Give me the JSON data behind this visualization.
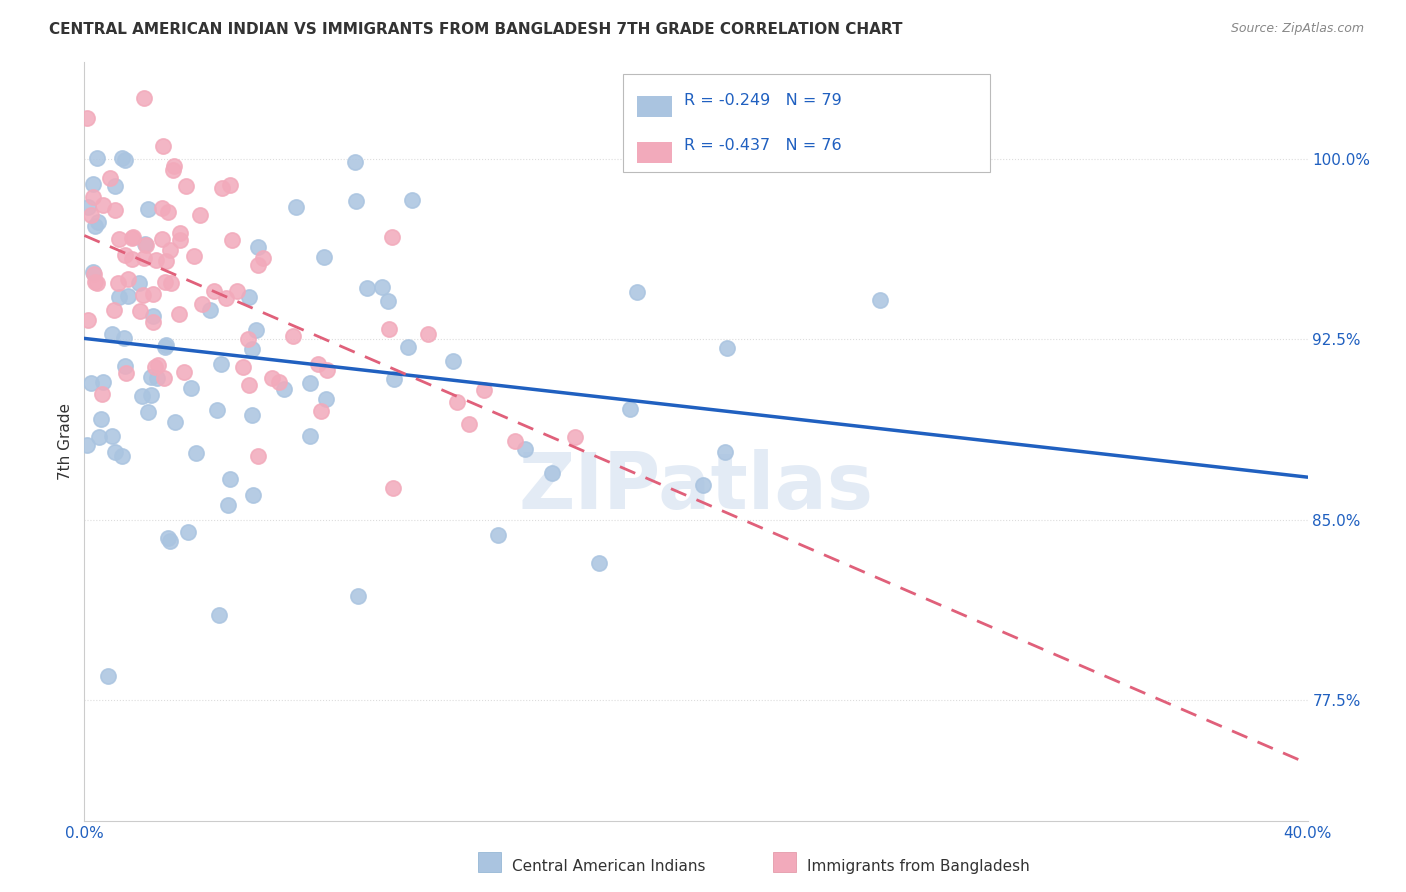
{
  "title": "CENTRAL AMERICAN INDIAN VS IMMIGRANTS FROM BANGLADESH 7TH GRADE CORRELATION CHART",
  "source": "Source: ZipAtlas.com",
  "ylabel": "7th Grade",
  "ytick_vals": [
    1.0,
    0.925,
    0.85,
    0.775
  ],
  "ytick_labels": [
    "100.0%",
    "92.5%",
    "85.0%",
    "77.5%"
  ],
  "legend_blue_label": "Central American Indians",
  "legend_pink_label": "Immigrants from Bangladesh",
  "legend_r_blue": "R = -0.249",
  "legend_n_blue": "N = 79",
  "legend_r_pink": "R = -0.437",
  "legend_n_pink": "N = 76",
  "blue_color": "#aac4e0",
  "pink_color": "#f2aabb",
  "blue_line_color": "#2060c0",
  "pink_line_color": "#e0607a",
  "r_blue": -0.249,
  "r_pink": -0.437,
  "n_blue": 79,
  "n_pink": 76,
  "xmin": 0.0,
  "xmax": 0.4,
  "ymin": 0.725,
  "ymax": 1.04,
  "watermark": "ZIPatlas",
  "background_color": "#ffffff",
  "grid_color": "#dddddd",
  "text_color_blue": "#2060c0",
  "text_color_dark": "#333333"
}
